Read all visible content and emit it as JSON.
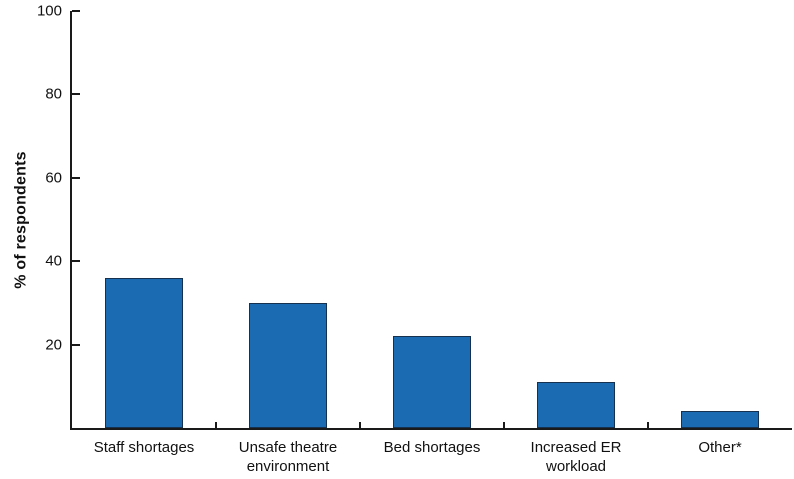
{
  "figure": {
    "background": "#ffffff"
  },
  "chart_data": {
    "type": "bar",
    "title": "",
    "xlabel": "",
    "ylabel": "% of respondents",
    "categories": [
      "Staff shortages",
      "Unsafe theatre\nenvironment",
      "Bed shortages",
      "Increased ER\nworkload",
      "Other*"
    ],
    "values": [
      36,
      30,
      22,
      11,
      4
    ],
    "ylim": [
      0,
      100
    ],
    "yticks": [
      20,
      40,
      60,
      80,
      100
    ],
    "grid": false,
    "legend": null,
    "bar_color": "#1b6bb3",
    "bar_edge_color": "#16304f",
    "axis_color": "#1a1a1a",
    "bar_width_fraction": 0.54
  }
}
